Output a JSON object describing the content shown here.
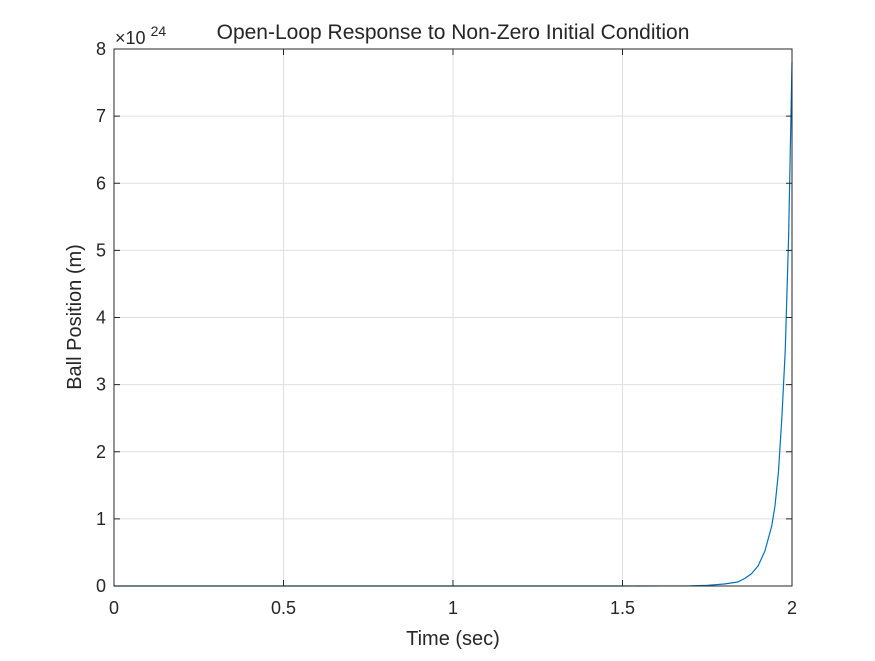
{
  "chart_data": {
    "type": "line",
    "title": "Open-Loop Response to Non-Zero Initial Condition",
    "xlabel": "Time (sec)",
    "ylabel": "Ball Position (m)",
    "y_exponent_base": "×10",
    "y_exponent_power": "24",
    "xlim": [
      0,
      2
    ],
    "ylim": [
      0,
      8
    ],
    "y_scale_multiplier": 1e+24,
    "xticks": [
      0,
      0.5,
      1,
      1.5,
      2
    ],
    "xtick_labels": [
      "0",
      "0.5",
      "1",
      "1.5",
      "2"
    ],
    "yticks": [
      0,
      1,
      2,
      3,
      4,
      5,
      6,
      7,
      8
    ],
    "ytick_labels": [
      "0",
      "1",
      "2",
      "3",
      "4",
      "5",
      "6",
      "7",
      "8"
    ],
    "grid": true,
    "legend": "none",
    "series": [
      {
        "color": "#0072bd",
        "x": [
          0,
          0.5,
          1.0,
          1.5,
          1.7,
          1.75,
          1.8,
          1.84,
          1.86,
          1.88,
          1.9,
          1.92,
          1.94,
          1.95,
          1.96,
          1.97,
          1.98,
          1.99,
          2.0
        ],
        "y": [
          0,
          0,
          0,
          0,
          0.003,
          0.01,
          0.03,
          0.06,
          0.11,
          0.18,
          0.3,
          0.52,
          0.89,
          1.2,
          1.7,
          2.5,
          3.5,
          5.2,
          7.8
        ]
      }
    ]
  }
}
